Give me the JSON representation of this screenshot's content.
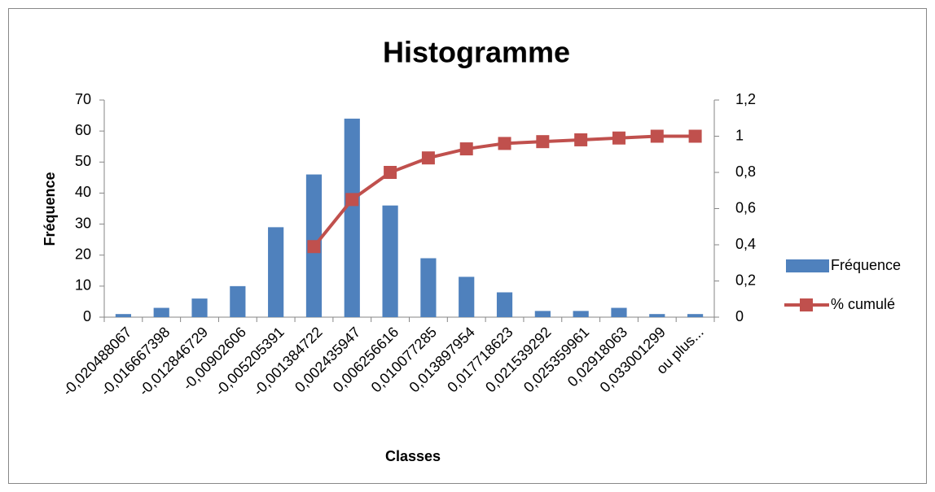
{
  "chart_data": {
    "type": "bar",
    "title": "Histogramme",
    "x_label": "Classes",
    "y_label": "Fréquence",
    "categories": [
      "-0,020488067",
      "-0,016667398",
      "-0,012846729",
      "-0,00902606",
      "-0,005205391",
      "-0,001384722",
      "0,002435947",
      "0,006256616",
      "0,010077285",
      "0,013897954",
      "0,017718623",
      "0,021539292",
      "0,025359961",
      "0,02918063",
      "0,033001299",
      "ou plus..."
    ],
    "series": [
      {
        "name": "Fréquence",
        "color": "#4f81bd",
        "values": [
          1,
          3,
          6,
          10,
          29,
          46,
          64,
          36,
          19,
          13,
          8,
          2,
          2,
          3,
          1,
          1
        ]
      },
      {
        "name": "% cumulé",
        "color": "#c0504d",
        "type": "line",
        "axis": "y2",
        "values": [
          null,
          null,
          null,
          null,
          null,
          0.39,
          0.65,
          0.8,
          0.88,
          0.93,
          0.96,
          0.97,
          0.98,
          0.99,
          1.0,
          1.0
        ]
      }
    ],
    "ylim": [
      0,
      70
    ],
    "yticks": [
      0,
      10,
      20,
      30,
      40,
      50,
      60,
      70
    ],
    "y2lim": [
      0,
      1.2
    ],
    "y2ticks": [
      0,
      {
        "value": 0.2,
        "label": "0,2"
      },
      {
        "value": 0.4,
        "label": "0,4"
      },
      {
        "value": 0.6,
        "label": "0,6"
      },
      {
        "value": 0.8,
        "label": "0,8"
      },
      1,
      {
        "value": 1.2,
        "label": "1,2"
      }
    ],
    "legend": "right"
  }
}
